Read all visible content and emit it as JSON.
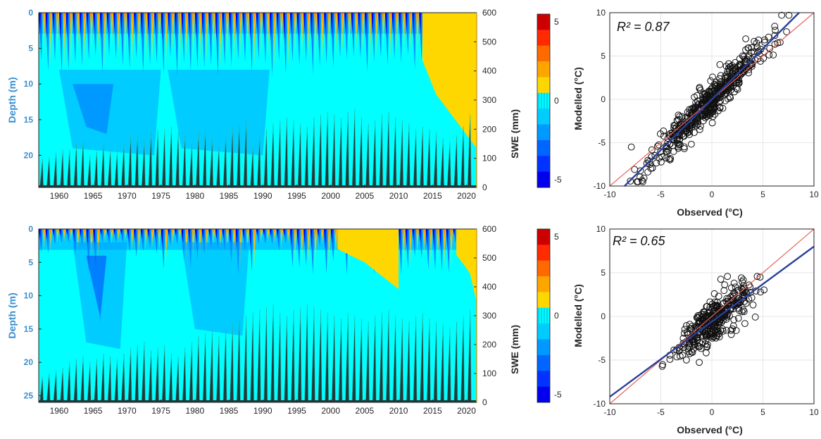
{
  "colors": {
    "depth_axis": "#3a8fd0",
    "swe_fill": "#1f3a3a",
    "swe_edge": "#2ab6a8",
    "one_to_one_line": "#e8615a",
    "regression_line": "#2a3f9a"
  },
  "colorbar": {
    "ticks": [
      "5",
      "0",
      "-5"
    ],
    "levels": [
      "#cc0000",
      "#ff2a00",
      "#ff6a00",
      "#ffa500",
      "#ffd700",
      "#00ffff",
      "#00ccff",
      "#0099ff",
      "#0066ff",
      "#0033ff",
      "#0000ee"
    ],
    "zero_index": 5
  },
  "chart_data": [
    {
      "type": "heatmap",
      "description_key": "top-left",
      "x_ticks": [
        "1960",
        "1965",
        "1970",
        "1975",
        "1980",
        "1985",
        "1990",
        "1995",
        "2000",
        "2005",
        "2010",
        "2015",
        "2020"
      ],
      "xlim": [
        1957,
        2021.5
      ],
      "ylabel": "Depth (m)",
      "y_ticks": [
        "0",
        "5",
        "10",
        "15",
        "20"
      ],
      "ylim": [
        0,
        24.5
      ],
      "y2label": "SWE (mm)",
      "y2_ticks": [
        "600",
        "500",
        "400",
        "300",
        "200",
        "100",
        "0"
      ],
      "y2lim": [
        0,
        600
      ],
      "swe_peaks_mm": [
        100,
        105,
        120,
        130,
        130,
        150,
        160,
        110,
        125,
        150,
        130,
        120,
        150,
        180,
        180,
        160,
        190,
        200,
        200,
        210,
        190,
        180,
        150,
        190,
        200,
        170,
        140,
        180,
        210,
        220,
        230,
        140,
        180,
        200,
        220,
        230,
        240,
        230,
        220,
        210,
        240,
        250,
        260,
        250,
        240,
        260,
        270,
        240,
        220,
        230,
        250,
        260,
        240,
        230,
        220,
        200,
        210,
        200,
        190,
        170,
        160,
        180,
        210,
        250
      ],
      "warm_zone": {
        "start_year": 2013.5,
        "depth_at_end_m": 19,
        "max_depth_m": 19
      }
    },
    {
      "type": "scatter",
      "description_key": "top-right",
      "xlabel": "Observed (°C)",
      "ylabel": "Modelled (°C)",
      "xlim": [
        -10,
        10
      ],
      "ylim": [
        -10,
        10
      ],
      "x_ticks": [
        "-10",
        "-5",
        "0",
        "5",
        "10"
      ],
      "y_ticks": [
        "10",
        "5",
        "0",
        "-5",
        "-10"
      ],
      "annotation": "R² = 0.87",
      "r2": 0.87,
      "one_to_one": {
        "slope": 1.0,
        "intercept": 0
      },
      "regression": {
        "slope": 1.17,
        "intercept": 0.0
      },
      "n_points": 520,
      "seed": 11,
      "x_sd": 2.6,
      "noise_sd": 1.0
    },
    {
      "type": "heatmap",
      "description_key": "bottom-left",
      "x_ticks": [
        "1960",
        "1965",
        "1970",
        "1975",
        "1980",
        "1985",
        "1990",
        "1995",
        "2000",
        "2005",
        "2010",
        "2015",
        "2020"
      ],
      "xlim": [
        1957,
        2021.5
      ],
      "ylabel": "Depth (m)",
      "y_ticks": [
        "0",
        "5",
        "10",
        "15",
        "20",
        "25"
      ],
      "ylim": [
        0,
        26
      ],
      "y2label": "SWE (mm)",
      "y2_ticks": [
        "600",
        "500",
        "400",
        "300",
        "200",
        "100",
        "0"
      ],
      "y2lim": [
        0,
        600
      ],
      "swe_peaks_mm": [
        90,
        100,
        110,
        120,
        140,
        150,
        160,
        140,
        150,
        170,
        160,
        150,
        170,
        190,
        200,
        210,
        180,
        190,
        200,
        170,
        160,
        190,
        210,
        230,
        240,
        250,
        230,
        260,
        270,
        290,
        300,
        310,
        320,
        330,
        340,
        310,
        300,
        320,
        330,
        340,
        330,
        320,
        310,
        300,
        290,
        310,
        300,
        290,
        280,
        300,
        310,
        320,
        300,
        290,
        280,
        300,
        310,
        290,
        280,
        270,
        260,
        280,
        300,
        320
      ],
      "warm_zone": {
        "start_year": 2018.5,
        "depth_at_end_m": 11,
        "max_depth_m": 11
      }
    },
    {
      "type": "scatter",
      "description_key": "bottom-right",
      "xlabel": "Observed (°C)",
      "ylabel": "Modelled (°C)",
      "xlim": [
        -10,
        10
      ],
      "ylim": [
        -10,
        10
      ],
      "x_ticks": [
        "-10",
        "-5",
        "0",
        "5",
        "10"
      ],
      "y_ticks": [
        "10",
        "5",
        "0",
        "-5",
        "-10"
      ],
      "annotation": "R² = 0.65",
      "r2": 0.65,
      "one_to_one": {
        "slope": 1.0,
        "intercept": 0
      },
      "regression": {
        "slope": 0.86,
        "intercept": -0.6
      },
      "n_points": 360,
      "seed": 29,
      "x_sd": 1.8,
      "noise_sd": 1.2
    }
  ]
}
